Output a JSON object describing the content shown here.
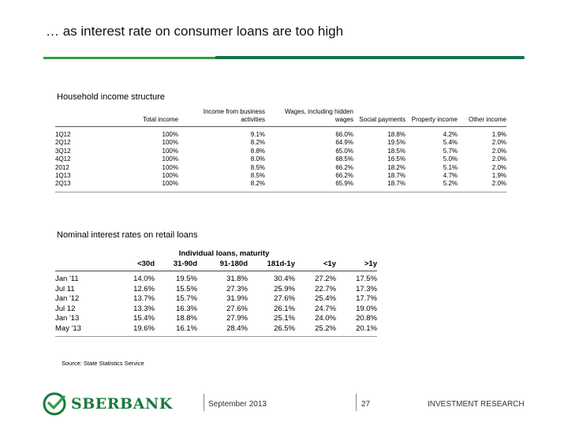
{
  "slide": {
    "title": "… as interest rate on consumer loans are too high",
    "source": "Source: State Statistics Service"
  },
  "income_table": {
    "heading": "Household income structure",
    "columns": [
      "Total income",
      "Income from business activities",
      "Wages, including hidden wages",
      "Social payments",
      "Property income",
      "Other income"
    ],
    "rows": [
      {
        "label": "1Q12",
        "values": [
          "100%",
          "9.1%",
          "66.0%",
          "18.8%",
          "4.2%",
          "1.9%"
        ]
      },
      {
        "label": "2Q12",
        "values": [
          "100%",
          "8.2%",
          "64.9%",
          "19.5%",
          "5.4%",
          "2.0%"
        ]
      },
      {
        "label": "3Q12",
        "values": [
          "100%",
          "8.8%",
          "65.0%",
          "18.5%",
          "5.7%",
          "2.0%"
        ]
      },
      {
        "label": "4Q12",
        "values": [
          "100%",
          "8.0%",
          "68.5%",
          "16.5%",
          "5.0%",
          "2.0%"
        ]
      },
      {
        "label": "2012",
        "values": [
          "100%",
          "8.5%",
          "66.2%",
          "18.2%",
          "5.1%",
          "2.0%"
        ]
      },
      {
        "label": "1Q13",
        "values": [
          "100%",
          "8.5%",
          "66.2%",
          "18.7%",
          "4.7%",
          "1.9%"
        ]
      },
      {
        "label": "2Q13",
        "values": [
          "100%",
          "8.2%",
          "65.9%",
          "18.7%",
          "5.2%",
          "2.0%"
        ]
      }
    ]
  },
  "rates_table": {
    "heading": "Nominal interest rates on retail loans",
    "group_label": "Individual loans, maturity",
    "columns": [
      "<30d",
      "31-90d",
      "91-180d",
      "181d-1y",
      "<1y",
      ">1y"
    ],
    "rows": [
      {
        "label": "Jan '11",
        "values": [
          "14.0%",
          "19.5%",
          "31.8%",
          "30.4%",
          "27.2%",
          "17.5%"
        ]
      },
      {
        "label": "Jul 11",
        "values": [
          "12.6%",
          "15.5%",
          "27.3%",
          "25.9%",
          "22.7%",
          "17.3%"
        ]
      },
      {
        "label": "Jan '12",
        "values": [
          "13.7%",
          "15.7%",
          "31.9%",
          "27.6%",
          "25.4%",
          "17.7%"
        ]
      },
      {
        "label": "Jul 12",
        "values": [
          "13.3%",
          "16.3%",
          "27.6%",
          "26.1%",
          "24.7%",
          "19.0%"
        ]
      },
      {
        "label": "Jan '13",
        "values": [
          "15.4%",
          "18.8%",
          "27.9%",
          "25.1%",
          "24.0%",
          "20.8%"
        ]
      },
      {
        "label": "May '13",
        "values": [
          "19.6%",
          "16.1%",
          "28.4%",
          "26.5%",
          "25.2%",
          "20.1%"
        ]
      }
    ]
  },
  "footer": {
    "logo_text": "SBERBANK",
    "logo_icon": "sberbank-logo-icon",
    "date": "September 2013",
    "page": "27",
    "department": "INVESTMENT RESEARCH"
  },
  "colors": {
    "accent_green": "#2f9e44",
    "dark_green": "#16724a",
    "logo_green": "#1a7a3e"
  }
}
